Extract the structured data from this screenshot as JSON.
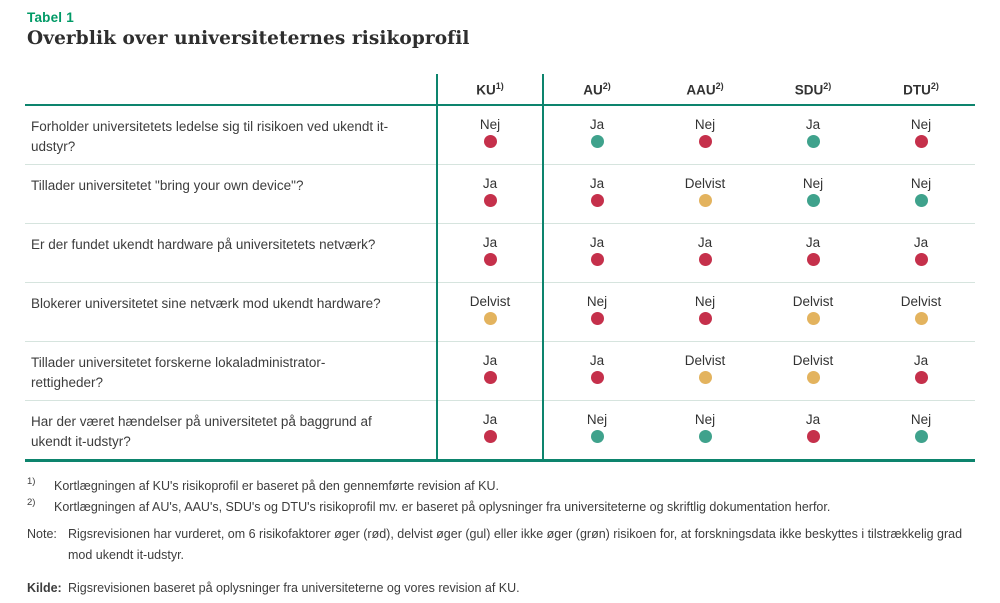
{
  "page": {
    "table_label": "Tabel 1",
    "title": "Overblik over universiteternes risikoprofil"
  },
  "colors": {
    "risk_red": "#C5304B",
    "risk_yellow": "#E3B35E",
    "risk_green": "#3FA28C",
    "accent_green": "#009A66",
    "table_line_green": "#0D846D"
  },
  "table": {
    "columns": [
      {
        "name": "KU",
        "footnote": "1)"
      },
      {
        "name": "AU",
        "footnote": "2)"
      },
      {
        "name": "AAU",
        "footnote": "2)"
      },
      {
        "name": "SDU",
        "footnote": "2)"
      },
      {
        "name": "DTU",
        "footnote": "2)"
      }
    ],
    "rows": [
      {
        "question": "Forholder universitetets ledelse sig til risikoen ved ukendt it-udstyr?",
        "answers": [
          {
            "text": "Nej",
            "dot": "#C5304B"
          },
          {
            "text": "Ja",
            "dot": "#3FA28C"
          },
          {
            "text": "Nej",
            "dot": "#C5304B"
          },
          {
            "text": "Ja",
            "dot": "#3FA28C"
          },
          {
            "text": "Nej",
            "dot": "#C5304B"
          }
        ]
      },
      {
        "question": "Tillader universitetet \"bring your own device\"?",
        "answers": [
          {
            "text": "Ja",
            "dot": "#C5304B"
          },
          {
            "text": "Ja",
            "dot": "#C5304B"
          },
          {
            "text": "Delvist",
            "dot": "#E3B35E"
          },
          {
            "text": "Nej",
            "dot": "#3FA28C"
          },
          {
            "text": "Nej",
            "dot": "#3FA28C"
          }
        ]
      },
      {
        "question": "Er der fundet ukendt hardware på universitetets netværk?",
        "answers": [
          {
            "text": "Ja",
            "dot": "#C5304B"
          },
          {
            "text": "Ja",
            "dot": "#C5304B"
          },
          {
            "text": "Ja",
            "dot": "#C5304B"
          },
          {
            "text": "Ja",
            "dot": "#C5304B"
          },
          {
            "text": "Ja",
            "dot": "#C5304B"
          }
        ]
      },
      {
        "question": "Blokerer universitetet sine netværk mod ukendt hardware?",
        "answers": [
          {
            "text": "Delvist",
            "dot": "#E3B35E"
          },
          {
            "text": "Nej",
            "dot": "#C5304B"
          },
          {
            "text": "Nej",
            "dot": "#C5304B"
          },
          {
            "text": "Delvist",
            "dot": "#E3B35E"
          },
          {
            "text": "Delvist",
            "dot": "#E3B35E"
          }
        ]
      },
      {
        "question": "Tillader universitetet forskerne lokaladministrator-rettigheder?",
        "answers": [
          {
            "text": "Ja",
            "dot": "#C5304B"
          },
          {
            "text": "Ja",
            "dot": "#C5304B"
          },
          {
            "text": "Delvist",
            "dot": "#E3B35E"
          },
          {
            "text": "Delvist",
            "dot": "#E3B35E"
          },
          {
            "text": "Ja",
            "dot": "#C5304B"
          }
        ]
      },
      {
        "question": "Har der været hændelser på universitetet på baggrund af ukendt it-udstyr?",
        "answers": [
          {
            "text": "Ja",
            "dot": "#C5304B"
          },
          {
            "text": "Nej",
            "dot": "#3FA28C"
          },
          {
            "text": "Nej",
            "dot": "#3FA28C"
          },
          {
            "text": "Ja",
            "dot": "#C5304B"
          },
          {
            "text": "Nej",
            "dot": "#3FA28C"
          }
        ]
      }
    ]
  },
  "footnotes": [
    {
      "marker": "1)",
      "text": "Kortlægningen af KU's risikoprofil er baseret på den gennemførte revision af KU."
    },
    {
      "marker": "2)",
      "text": "Kortlægningen af AU's, AAU's, SDU's og DTU's risikoprofil mv. er baseret på oplysninger fra universiteterne og skriftlig dokumentation herfor."
    }
  ],
  "note": {
    "label": "Note:",
    "text": "Rigsrevisionen har vurderet, om 6 risikofaktorer øger (rød), delvist øger (gul) eller ikke øger (grøn) risikoen for, at forskningsdata ikke beskyttes i tilstrækkelig grad mod ukendt it-udstyr."
  },
  "source": {
    "label": "Kilde:",
    "text": "Rigsrevisionen baseret på oplysninger fra universiteterne og vores revision af KU."
  }
}
